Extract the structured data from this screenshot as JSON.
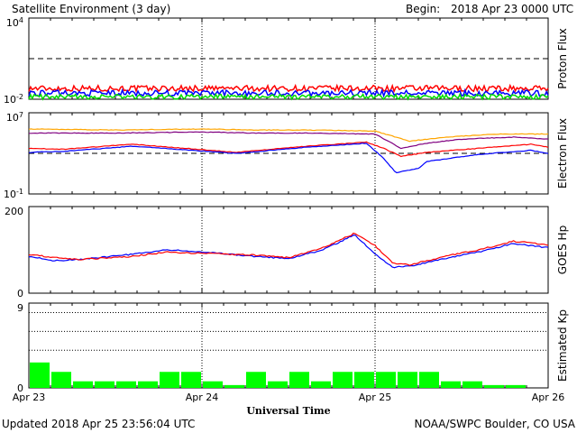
{
  "header": {
    "title": "Satellite Environment (3 day)",
    "begin_label": "Begin:",
    "begin_value": "2018 Apr 23 0000 UTC"
  },
  "footer": {
    "updated": "Updated 2018 Apr 25 23:56:04 UTC",
    "credit": "NOAA/SWPC Boulder, CO USA",
    "xlabel": "Universal Time"
  },
  "x_ticks": [
    "Apr 23",
    "Apr 24",
    "Apr 25",
    "Apr 26"
  ],
  "chart_data": [
    {
      "type": "line",
      "ylabel": "Proton Flux",
      "yscale": "log",
      "ylim_exp": [
        -2,
        4
      ],
      "ytick_labels": [
        {
          "base": "10",
          "exp": "4"
        },
        {
          "base": "10",
          "exp": "-2"
        }
      ],
      "threshold_exp": 1,
      "x_days": [
        0,
        3
      ],
      "series": [
        {
          "color": "#ff0000",
          "level_exp": -1.2,
          "noise": 0.22
        },
        {
          "color": "#0000ff",
          "level_exp": -1.55,
          "noise": 0.22
        },
        {
          "color": "#00dd00",
          "level_exp": -1.82,
          "noise": 0.18
        }
      ]
    },
    {
      "type": "line",
      "ylabel": "Electron Flux",
      "yscale": "log",
      "ylim_exp": [
        -1,
        7
      ],
      "ytick_labels": [
        {
          "base": "10",
          "exp": "7"
        },
        {
          "base": "10",
          "exp": "-1"
        }
      ],
      "threshold_exp": 3,
      "series": [
        {
          "color": "#ffa500",
          "x": [
            0,
            0.5,
            1,
            1.3,
            1.6,
            2,
            2.2,
            2.4,
            2.7,
            3
          ],
          "y_exp": [
            5.4,
            5.3,
            5.4,
            5.3,
            5.3,
            5.2,
            4.2,
            4.6,
            4.9,
            4.9
          ]
        },
        {
          "color": "#800080",
          "x": [
            0,
            0.5,
            1,
            1.3,
            1.6,
            2,
            2.15,
            2.3,
            2.5,
            2.8,
            3
          ],
          "y_exp": [
            5.0,
            5.0,
            5.1,
            5.0,
            5.0,
            4.9,
            3.5,
            4.0,
            4.4,
            4.6,
            4.4
          ]
        },
        {
          "color": "#ff0000",
          "x": [
            0,
            0.2,
            0.6,
            1.2,
            1.6,
            1.95,
            2.05,
            2.15,
            2.3,
            2.6,
            2.9,
            3
          ],
          "y_exp": [
            3.5,
            3.4,
            3.9,
            3.1,
            3.7,
            4.1,
            3.5,
            2.7,
            3.1,
            3.5,
            3.9,
            3.6
          ]
        },
        {
          "color": "#0000ff",
          "x": [
            0,
            0.2,
            0.6,
            1.2,
            1.6,
            1.95,
            2.05,
            2.12,
            2.25,
            2.3,
            2.6,
            2.9,
            3
          ],
          "y_exp": [
            3.1,
            3.2,
            3.7,
            3.0,
            3.6,
            4.0,
            2.5,
            1.1,
            1.5,
            2.2,
            2.9,
            3.3,
            3.0
          ]
        }
      ]
    },
    {
      "type": "line",
      "ylabel": "GOES Hp",
      "ylim": [
        0,
        200
      ],
      "ytick_labels": [
        "200",
        "0"
      ],
      "series": [
        {
          "color": "#0000ff",
          "x": [
            0,
            0.15,
            0.3,
            0.6,
            0.8,
            1.0,
            1.3,
            1.5,
            1.7,
            1.88,
            2.0,
            2.1,
            2.2,
            2.4,
            2.6,
            2.8,
            3.0
          ],
          "y": [
            85,
            75,
            78,
            90,
            100,
            95,
            85,
            80,
            100,
            135,
            90,
            60,
            62,
            80,
            95,
            115,
            105
          ]
        },
        {
          "color": "#ff0000",
          "x": [
            0,
            0.15,
            0.3,
            0.6,
            0.8,
            1.0,
            1.3,
            1.5,
            1.7,
            1.88,
            2.0,
            2.1,
            2.2,
            2.4,
            2.6,
            2.8,
            3.0
          ],
          "y": [
            90,
            82,
            78,
            85,
            95,
            92,
            88,
            82,
            105,
            138,
            110,
            70,
            65,
            85,
            100,
            120,
            112
          ]
        }
      ]
    },
    {
      "type": "bar",
      "ylabel": "Estimated Kp",
      "ylim": [
        0,
        9
      ],
      "ytick_labels": [
        "9",
        "0"
      ],
      "gridlines": [
        4,
        6,
        8
      ],
      "color": "#00ff00",
      "values": [
        2.7,
        1.7,
        0.7,
        0.7,
        0.7,
        0.7,
        1.7,
        1.7,
        0.7,
        0.3,
        1.7,
        0.7,
        1.7,
        0.7,
        1.7,
        1.7,
        1.7,
        1.7,
        1.7,
        0.7,
        0.7,
        0.3,
        0.3,
        0
      ]
    }
  ]
}
